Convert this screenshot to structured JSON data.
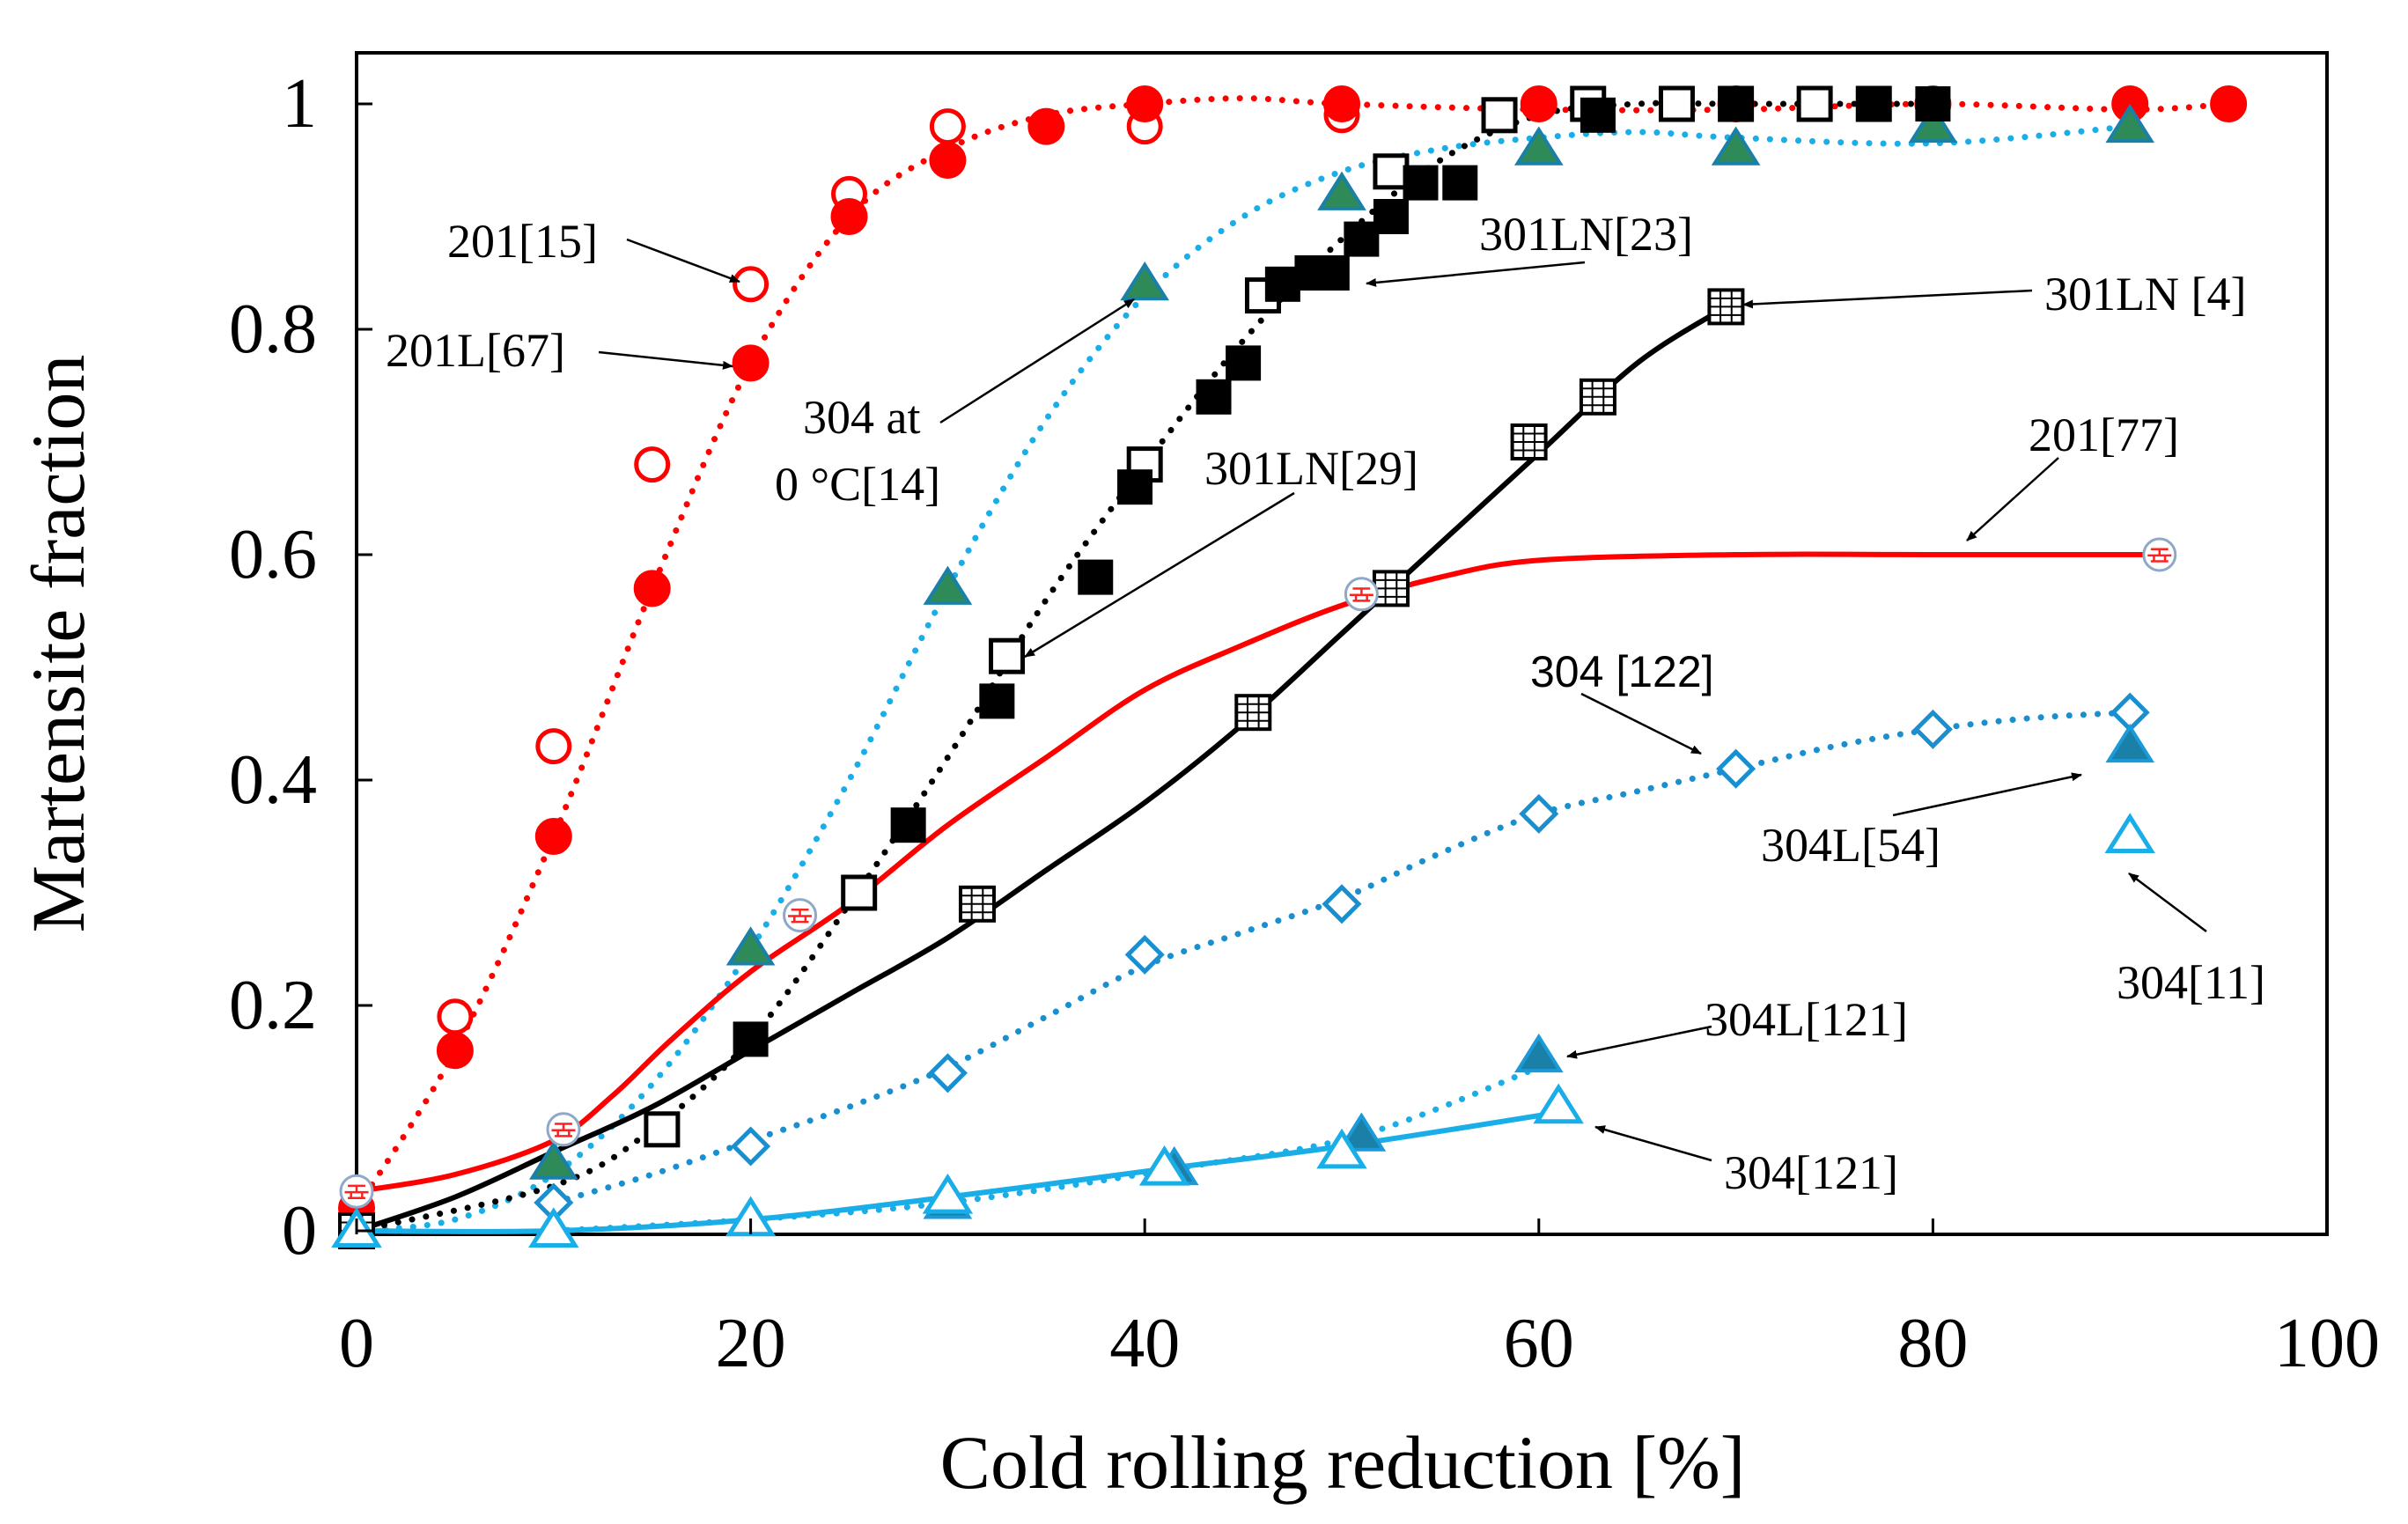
{
  "chart_data": {
    "type": "scatter",
    "title": "",
    "xlabel": "Cold rolling reduction [%]",
    "ylabel": "Martensite fraction",
    "xlim": [
      0,
      100
    ],
    "ylim": [
      0,
      1
    ],
    "x_ticks": [
      0,
      20,
      40,
      60,
      80,
      100
    ],
    "y_ticks": [
      0,
      0.2,
      0.4,
      0.6,
      0.8,
      1
    ],
    "y_tick_labels": [
      "0",
      "0.2",
      "0.4",
      "0.6",
      "0.8",
      "1"
    ],
    "grid": false,
    "legend": "none",
    "series": [
      {
        "marker": "circle-open",
        "color": "#ff0000",
        "x": [
          5,
          10,
          15,
          20,
          25,
          30,
          40,
          50,
          60
        ],
        "y": [
          0.19,
          0.43,
          0.68,
          0.84,
          0.92,
          0.98,
          0.98,
          0.99,
          1.0
        ]
      },
      {
        "marker": "circle-filled",
        "color": "#ff0000",
        "fit": "dotted",
        "x": [
          0,
          5,
          10,
          15,
          20,
          25,
          30,
          35,
          40,
          50,
          60,
          70,
          80,
          90,
          95
        ],
        "y": [
          0.02,
          0.16,
          0.35,
          0.57,
          0.77,
          0.9,
          0.95,
          0.98,
          1.0,
          1.0,
          1.0,
          1.0,
          1.0,
          1.0,
          1.0
        ],
        "fit_x": [
          0,
          5,
          10,
          15,
          20,
          25,
          30,
          35,
          40,
          45,
          50,
          60,
          70,
          80,
          90,
          95
        ],
        "fit_y": [
          0.02,
          0.16,
          0.35,
          0.57,
          0.77,
          0.9,
          0.96,
          0.99,
          1.0,
          1.005,
          1.0,
          0.995,
          0.995,
          1.0,
          0.995,
          1.0
        ]
      },
      {
        "marker": "triangle-filled-green",
        "color": "#2e8b57",
        "stroke": "#1a80a8",
        "fit": "dotted",
        "fit_color": "#19aee8",
        "x": [
          0,
          10,
          20,
          30,
          40,
          50,
          60,
          70,
          80,
          90
        ],
        "y": [
          0.0,
          0.06,
          0.25,
          0.57,
          0.84,
          0.92,
          0.96,
          0.96,
          0.98,
          0.98
        ],
        "fit_x": [
          0,
          5,
          10,
          15,
          20,
          25,
          30,
          35,
          40,
          45,
          50,
          55,
          60,
          65,
          70,
          80,
          90
        ],
        "fit_y": [
          0.0,
          0.01,
          0.05,
          0.13,
          0.25,
          0.4,
          0.57,
          0.72,
          0.83,
          0.9,
          0.94,
          0.96,
          0.97,
          0.975,
          0.97,
          0.965,
          0.98
        ]
      },
      {
        "marker": "square-open",
        "color": "#000000",
        "x": [
          15.5,
          25.5,
          33,
          40,
          46,
          52.5,
          58,
          62.5,
          67,
          70,
          74,
          77
        ],
        "y": [
          0.09,
          0.3,
          0.51,
          0.68,
          0.83,
          0.94,
          0.99,
          1.0,
          1.0,
          1.0,
          1.0,
          1.0
        ]
      },
      {
        "marker": "square-filled",
        "color": "#000000",
        "fit": "dotted",
        "x": [
          0,
          20,
          28,
          32.5,
          37.5,
          39.5,
          43.5,
          45,
          47,
          48.5,
          49.5,
          51,
          52.5,
          54,
          56,
          63,
          70,
          77,
          80
        ],
        "y": [
          0.0,
          0.17,
          0.36,
          0.47,
          0.58,
          0.66,
          0.74,
          0.77,
          0.84,
          0.85,
          0.85,
          0.88,
          0.9,
          0.93,
          0.93,
          0.99,
          1.0,
          1.0,
          1.0
        ],
        "fit_x": [
          0,
          10,
          15,
          20,
          25,
          30,
          35,
          40,
          45,
          50,
          55,
          60,
          65,
          70,
          80
        ],
        "fit_y": [
          0.0,
          0.04,
          0.09,
          0.17,
          0.29,
          0.42,
          0.56,
          0.68,
          0.79,
          0.88,
          0.95,
          0.99,
          1.0,
          1.0,
          1.0
        ]
      },
      {
        "marker": "square-grid",
        "color": "#000000",
        "fit": "solid",
        "x": [
          0,
          31.5,
          45.5,
          52.5,
          59.5,
          63,
          69.5
        ],
        "y": [
          0.0,
          0.29,
          0.46,
          0.57,
          0.7,
          0.74,
          0.82
        ],
        "fit_x": [
          0,
          5,
          10,
          15,
          20,
          25,
          30,
          35,
          40,
          45,
          50,
          55,
          60,
          65,
          69.5
        ],
        "fit_y": [
          0.0,
          0.03,
          0.07,
          0.11,
          0.16,
          0.21,
          0.26,
          0.32,
          0.38,
          0.45,
          0.53,
          0.61,
          0.69,
          0.77,
          0.82
        ]
      },
      {
        "marker": "circle-brick",
        "color": "#ff0000",
        "fit": "solid",
        "x": [
          0,
          10.5,
          22.5,
          51,
          91.5
        ],
        "y": [
          0.035,
          0.09,
          0.28,
          0.565,
          0.6
        ],
        "fit_x": [
          0,
          5,
          10,
          13,
          16,
          20,
          25,
          30,
          35,
          40,
          45,
          50,
          55,
          60,
          70,
          80,
          91.5
        ],
        "fit_y": [
          0.035,
          0.05,
          0.08,
          0.12,
          0.17,
          0.23,
          0.29,
          0.36,
          0.42,
          0.48,
          0.52,
          0.555,
          0.58,
          0.595,
          0.6,
          0.6,
          0.6
        ]
      },
      {
        "marker": "diamond-open",
        "color": "#1a8fd0",
        "fit": "dotted",
        "x": [
          10,
          20,
          30,
          40,
          50,
          60,
          70,
          80,
          90
        ],
        "y": [
          0.025,
          0.075,
          0.14,
          0.245,
          0.29,
          0.37,
          0.41,
          0.445,
          0.46
        ],
        "fit_x": [
          10,
          15,
          20,
          25,
          30,
          35,
          40,
          45,
          50,
          55,
          60,
          65,
          70,
          75,
          80,
          85,
          90
        ],
        "fit_y": [
          0.025,
          0.05,
          0.08,
          0.11,
          0.145,
          0.19,
          0.235,
          0.265,
          0.295,
          0.335,
          0.37,
          0.39,
          0.41,
          0.43,
          0.445,
          0.455,
          0.46
        ]
      },
      {
        "marker": "triangle-filled-blue",
        "color": "#1a80a8",
        "fit": "dotted",
        "fit_color": "#19aee8",
        "x": [
          10,
          20,
          30,
          41.5,
          51,
          60
        ],
        "y": [
          0.0,
          0.01,
          0.025,
          0.055,
          0.085,
          0.155
        ],
        "fit_x": [
          10,
          20,
          30,
          41.5,
          51,
          60
        ],
        "fit_y": [
          0.0,
          0.01,
          0.025,
          0.055,
          0.085,
          0.145
        ]
      },
      {
        "marker": "triangle-open",
        "color": "#19aee8",
        "fit": "solid",
        "x": [
          0,
          10,
          20,
          30,
          41,
          50,
          61
        ],
        "y": [
          0.0,
          0.0,
          0.01,
          0.03,
          0.055,
          0.07,
          0.11
        ],
        "fit_x": [
          0,
          10,
          20,
          30,
          41,
          50,
          61
        ],
        "fit_y": [
          0.0,
          0.0,
          0.01,
          0.03,
          0.055,
          0.075,
          0.105
        ]
      },
      {
        "marker": "triangle-filled-blue",
        "color": "#1a80a8",
        "x": [
          90
        ],
        "y": [
          0.43
        ]
      },
      {
        "marker": "triangle-open",
        "color": "#19aee8",
        "x": [
          90
        ],
        "y": [
          0.35
        ]
      }
    ],
    "annotations": [
      {
        "text": "201[15]",
        "target": [
          20,
          0.84
        ],
        "font": "serif"
      },
      {
        "text": "201L[67]",
        "target": [
          20,
          0.77
        ],
        "font": "serif"
      },
      {
        "text": "304 at",
        "target": [
          40,
          0.84
        ],
        "font": "serif"
      },
      {
        "text": "0 °C[14]",
        "font": "serif"
      },
      {
        "text": "301LN[23]",
        "target": [
          51,
          0.835
        ],
        "font": "serif"
      },
      {
        "text": "301LN [4]",
        "target": [
          70,
          0.82
        ],
        "font": "serif"
      },
      {
        "text": "301LN[29]",
        "target": [
          34.5,
          0.5
        ],
        "font": "serif"
      },
      {
        "text": "201[77]",
        "target": [
          82,
          0.605
        ],
        "font": "serif"
      },
      {
        "text": "304 [122]",
        "target": [
          68,
          0.42
        ],
        "font": "sans"
      },
      {
        "text": "304L[54]",
        "target": [
          88,
          0.43
        ],
        "font": "serif"
      },
      {
        "text": "304[11]",
        "target": [
          90.5,
          0.33
        ],
        "font": "serif"
      },
      {
        "text": "304L[121]",
        "target": [
          61,
          0.16
        ],
        "font": "serif"
      },
      {
        "text": "304[121]",
        "target": [
          62,
          0.09
        ],
        "font": "serif"
      }
    ]
  }
}
